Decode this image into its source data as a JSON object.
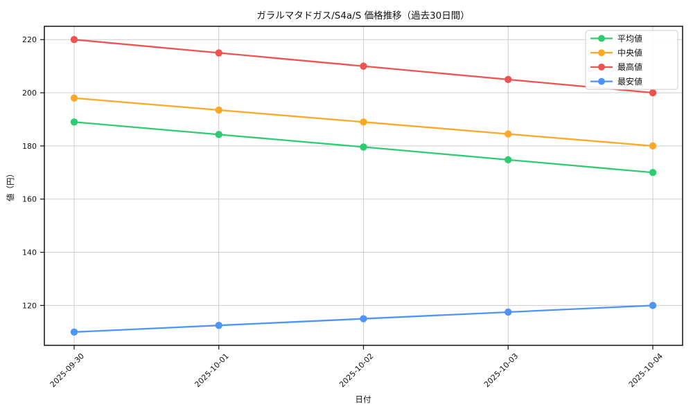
{
  "chart_data": {
    "type": "line",
    "title": "ガラルマタドガス/S4a/S 価格推移（過去30日間）",
    "xlabel": "日付",
    "ylabel": "値（円）",
    "x": [
      "2025-09-30",
      "2025-10-01",
      "2025-10-02",
      "2025-10-03",
      "2025-10-04"
    ],
    "yticks": [
      120,
      140,
      160,
      180,
      200,
      220
    ],
    "ylim": [
      105,
      225
    ],
    "grid": true,
    "grid_color": "#cccccc",
    "legend_position": "upper-right",
    "series": [
      {
        "name": "平均値",
        "color": "#2ecc71",
        "values": [
          189,
          184.3,
          179.6,
          174.8,
          170
        ]
      },
      {
        "name": "中央値",
        "color": "#ffa726",
        "values": [
          198,
          193.5,
          189,
          184.5,
          180
        ]
      },
      {
        "name": "最高値",
        "color": "#ef5350",
        "values": [
          220,
          215,
          210,
          205,
          200
        ]
      },
      {
        "name": "最安値",
        "color": "#4d94fb",
        "values": [
          110,
          112.5,
          115,
          117.5,
          120
        ]
      }
    ]
  }
}
